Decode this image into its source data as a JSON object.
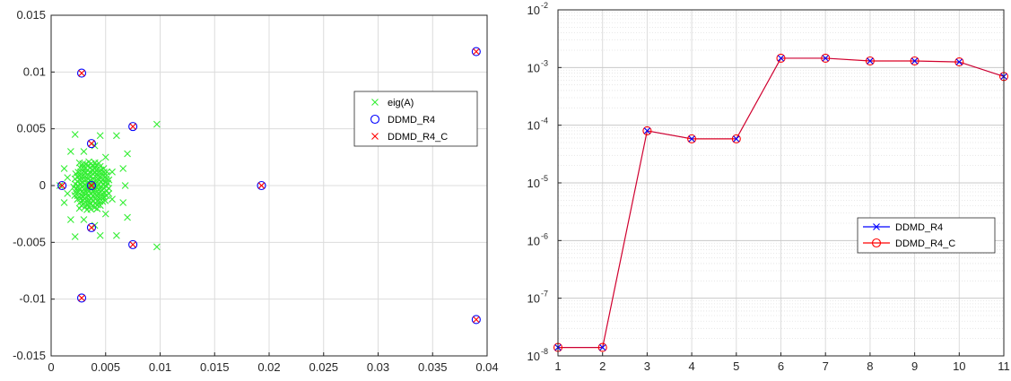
{
  "chart_data": [
    {
      "type": "scatter",
      "title": "",
      "xlabel": "",
      "ylabel": "",
      "xlim": [
        0,
        0.04
      ],
      "ylim": [
        -0.015,
        0.015
      ],
      "xticks": [
        "0",
        "0.005",
        "0.01",
        "0.015",
        "0.02",
        "0.025",
        "0.03",
        "0.035",
        "0.04"
      ],
      "yticks": [
        "-0.015",
        "-0.01",
        "-0.005",
        "0",
        "0.005",
        "0.01",
        "0.015"
      ],
      "grid": true,
      "legend": {
        "placement": "right",
        "entries": [
          {
            "name": "eig(A)",
            "marker": "x",
            "color": "#33ee33"
          },
          {
            "name": "DDMD_R4",
            "marker": "o",
            "color": "#0000ff"
          },
          {
            "name": "DDMD_R4_C",
            "marker": "x",
            "color": "#ff0000"
          }
        ]
      },
      "series": [
        {
          "name": "eig(A)",
          "marker": "x",
          "color": "#33ee33",
          "points": [
            [
              0.0008,
              0.0
            ],
            [
              0.0012,
              0.0015
            ],
            [
              0.0012,
              -0.0015
            ],
            [
              0.0018,
              0.003
            ],
            [
              0.0018,
              -0.003
            ],
            [
              0.0022,
              0.0045
            ],
            [
              0.0022,
              -0.0045
            ],
            [
              0.0045,
              0.0044
            ],
            [
              0.0045,
              -0.0044
            ],
            [
              0.006,
              0.0044
            ],
            [
              0.006,
              -0.0044
            ],
            [
              0.007,
              0.0028
            ],
            [
              0.007,
              -0.0028
            ],
            [
              0.0068,
              0.0
            ],
            [
              0.0066,
              0.0015
            ],
            [
              0.0066,
              -0.0015
            ],
            [
              0.0097,
              0.0054
            ],
            [
              0.0097,
              -0.0054
            ],
            [
              0.003,
              0.003
            ],
            [
              0.003,
              -0.003
            ],
            [
              0.005,
              0.0025
            ],
            [
              0.005,
              -0.0025
            ],
            [
              0.0015,
              0.0007
            ],
            [
              0.0015,
              -0.0007
            ],
            [
              0.0056,
              0.0012
            ],
            [
              0.0056,
              -0.0012
            ],
            [
              0.0026,
              0.002
            ],
            [
              0.0026,
              -0.002
            ],
            [
              0.004,
              0.0035
            ],
            [
              0.004,
              -0.0035
            ]
          ],
          "cluster": {
            "center": [
              0.0037,
              0.0
            ],
            "radius_x": 0.0017,
            "radius_y": 0.0022
          }
        },
        {
          "name": "DDMD_R4",
          "marker": "o",
          "color": "#0000ff",
          "points": [
            [
              0.0037,
              0.0
            ],
            [
              0.001,
              0.0
            ],
            [
              0.0028,
              0.0099
            ],
            [
              0.0028,
              -0.0099
            ],
            [
              0.0037,
              0.0037
            ],
            [
              0.0037,
              -0.0037
            ],
            [
              0.0075,
              0.0052
            ],
            [
              0.0075,
              -0.0052
            ],
            [
              0.0193,
              0.0
            ],
            [
              0.039,
              0.0118
            ],
            [
              0.039,
              -0.0118
            ]
          ]
        },
        {
          "name": "DDMD_R4_C",
          "marker": "x",
          "color": "#ff0000",
          "points": [
            [
              0.0037,
              0.0
            ],
            [
              0.001,
              0.0
            ],
            [
              0.0028,
              0.0099
            ],
            [
              0.0028,
              -0.0099
            ],
            [
              0.0037,
              0.0037
            ],
            [
              0.0037,
              -0.0037
            ],
            [
              0.0075,
              0.0052
            ],
            [
              0.0075,
              -0.0052
            ],
            [
              0.0193,
              0.0
            ],
            [
              0.039,
              0.0118
            ],
            [
              0.039,
              -0.0118
            ]
          ]
        }
      ]
    },
    {
      "type": "line",
      "title": "",
      "xlabel": "",
      "ylabel": "",
      "yscale": "log",
      "xlim": [
        1,
        11
      ],
      "ylim": [
        1e-08,
        0.01
      ],
      "x": [
        1,
        2,
        3,
        4,
        5,
        6,
        7,
        8,
        9,
        10,
        11
      ],
      "xticks": [
        "1",
        "2",
        "3",
        "4",
        "5",
        "6",
        "7",
        "8",
        "9",
        "10",
        "11"
      ],
      "yticks": [
        {
          "base": "10",
          "exp": "-8"
        },
        {
          "base": "10",
          "exp": "-7"
        },
        {
          "base": "10",
          "exp": "-6"
        },
        {
          "base": "10",
          "exp": "-5"
        },
        {
          "base": "10",
          "exp": "-4"
        },
        {
          "base": "10",
          "exp": "-3"
        },
        {
          "base": "10",
          "exp": "-2"
        }
      ],
      "grid": true,
      "minor_grid": true,
      "legend": {
        "placement": "lower-right",
        "entries": [
          {
            "name": "DDMD_R4",
            "marker": "x",
            "color": "#0000ff"
          },
          {
            "name": "DDMD_R4_C",
            "marker": "o",
            "color": "#ff0000"
          }
        ]
      },
      "series": [
        {
          "name": "DDMD_R4",
          "marker": "x",
          "color": "#0000ff",
          "values": [
            1.4e-08,
            1.4e-08,
            8e-05,
            5.8e-05,
            5.8e-05,
            0.00145,
            0.00145,
            0.0013,
            0.0013,
            0.00125,
            0.0007
          ]
        },
        {
          "name": "DDMD_R4_C",
          "marker": "o",
          "color": "#ff0000",
          "values": [
            1.4e-08,
            1.4e-08,
            8e-05,
            5.8e-05,
            5.8e-05,
            0.00145,
            0.00145,
            0.0013,
            0.0013,
            0.00125,
            0.0007
          ]
        }
      ]
    }
  ]
}
